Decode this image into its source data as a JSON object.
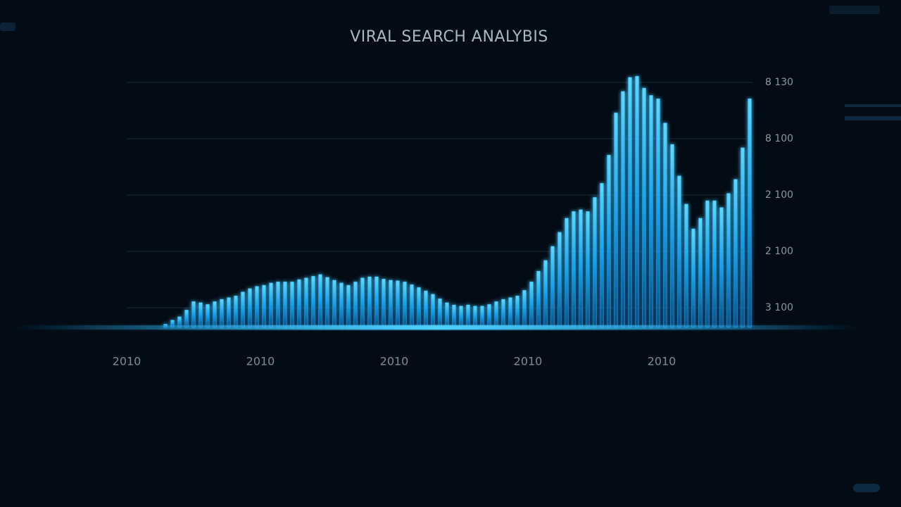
{
  "chart_data": {
    "type": "bar",
    "title": "VIRAL SEARCH ANALYBIS",
    "color": "#1aa3e8",
    "values": [
      0.65,
      0.71,
      0.78,
      0.84,
      0.96,
      1.11,
      1.09,
      1.06,
      1.11,
      1.15,
      1.18,
      1.21,
      1.28,
      1.34,
      1.38,
      1.4,
      1.44,
      1.46,
      1.46,
      1.46,
      1.5,
      1.53,
      1.56,
      1.59,
      1.54,
      1.49,
      1.44,
      1.4,
      1.46,
      1.53,
      1.55,
      1.55,
      1.51,
      1.49,
      1.48,
      1.46,
      1.41,
      1.36,
      1.3,
      1.24,
      1.16,
      1.09,
      1.05,
      1.03,
      1.05,
      1.03,
      1.03,
      1.06,
      1.11,
      1.15,
      1.18,
      1.21,
      1.31,
      1.46,
      1.65,
      1.84,
      2.09,
      2.34,
      2.59,
      2.71,
      2.74,
      2.71,
      2.96,
      3.21,
      3.71,
      4.46,
      4.84,
      5.09,
      5.11,
      4.9,
      4.77,
      4.71,
      4.28,
      3.9,
      3.34,
      2.84,
      2.4,
      2.59,
      2.9,
      2.9,
      2.78,
      3.03,
      3.28,
      3.84,
      4.71
    ],
    "xtick_labels": [
      "2010",
      "2010",
      "2010",
      "2010",
      "2010"
    ],
    "ylim": [
      0.65,
      5.5
    ],
    "yticks": [
      {
        "value": 1,
        "label": "3 100"
      },
      {
        "value": 2,
        "label": "2 100"
      },
      {
        "value": 3,
        "label": "2 100"
      },
      {
        "value": 4,
        "label": "8 100"
      },
      {
        "value": 5,
        "label": "8 130"
      }
    ],
    "grid": true
  }
}
